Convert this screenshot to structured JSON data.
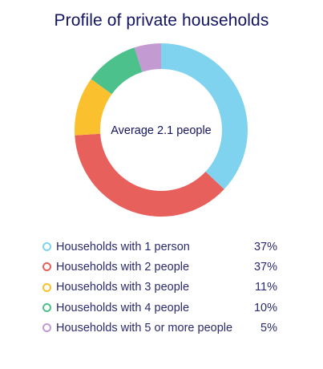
{
  "chart_data": {
    "type": "pie",
    "title": "Profile of private households",
    "center_label": "Average 2.1 people",
    "categories": [
      "Households with 1 person",
      "Households with 2 people",
      "Households with 3 people",
      "Households with 4 people",
      "Households with 5 or more people"
    ],
    "values": [
      37,
      37,
      11,
      10,
      5
    ],
    "value_labels": [
      "37%",
      "37%",
      "11%",
      "10%",
      "5%"
    ],
    "colors": [
      "#7fd3ef",
      "#e8605c",
      "#fbc02d",
      "#4cc18b",
      "#c39ad1"
    ],
    "donut": true,
    "start_angle": "top",
    "direction": "clockwise",
    "legend": "bottom"
  }
}
